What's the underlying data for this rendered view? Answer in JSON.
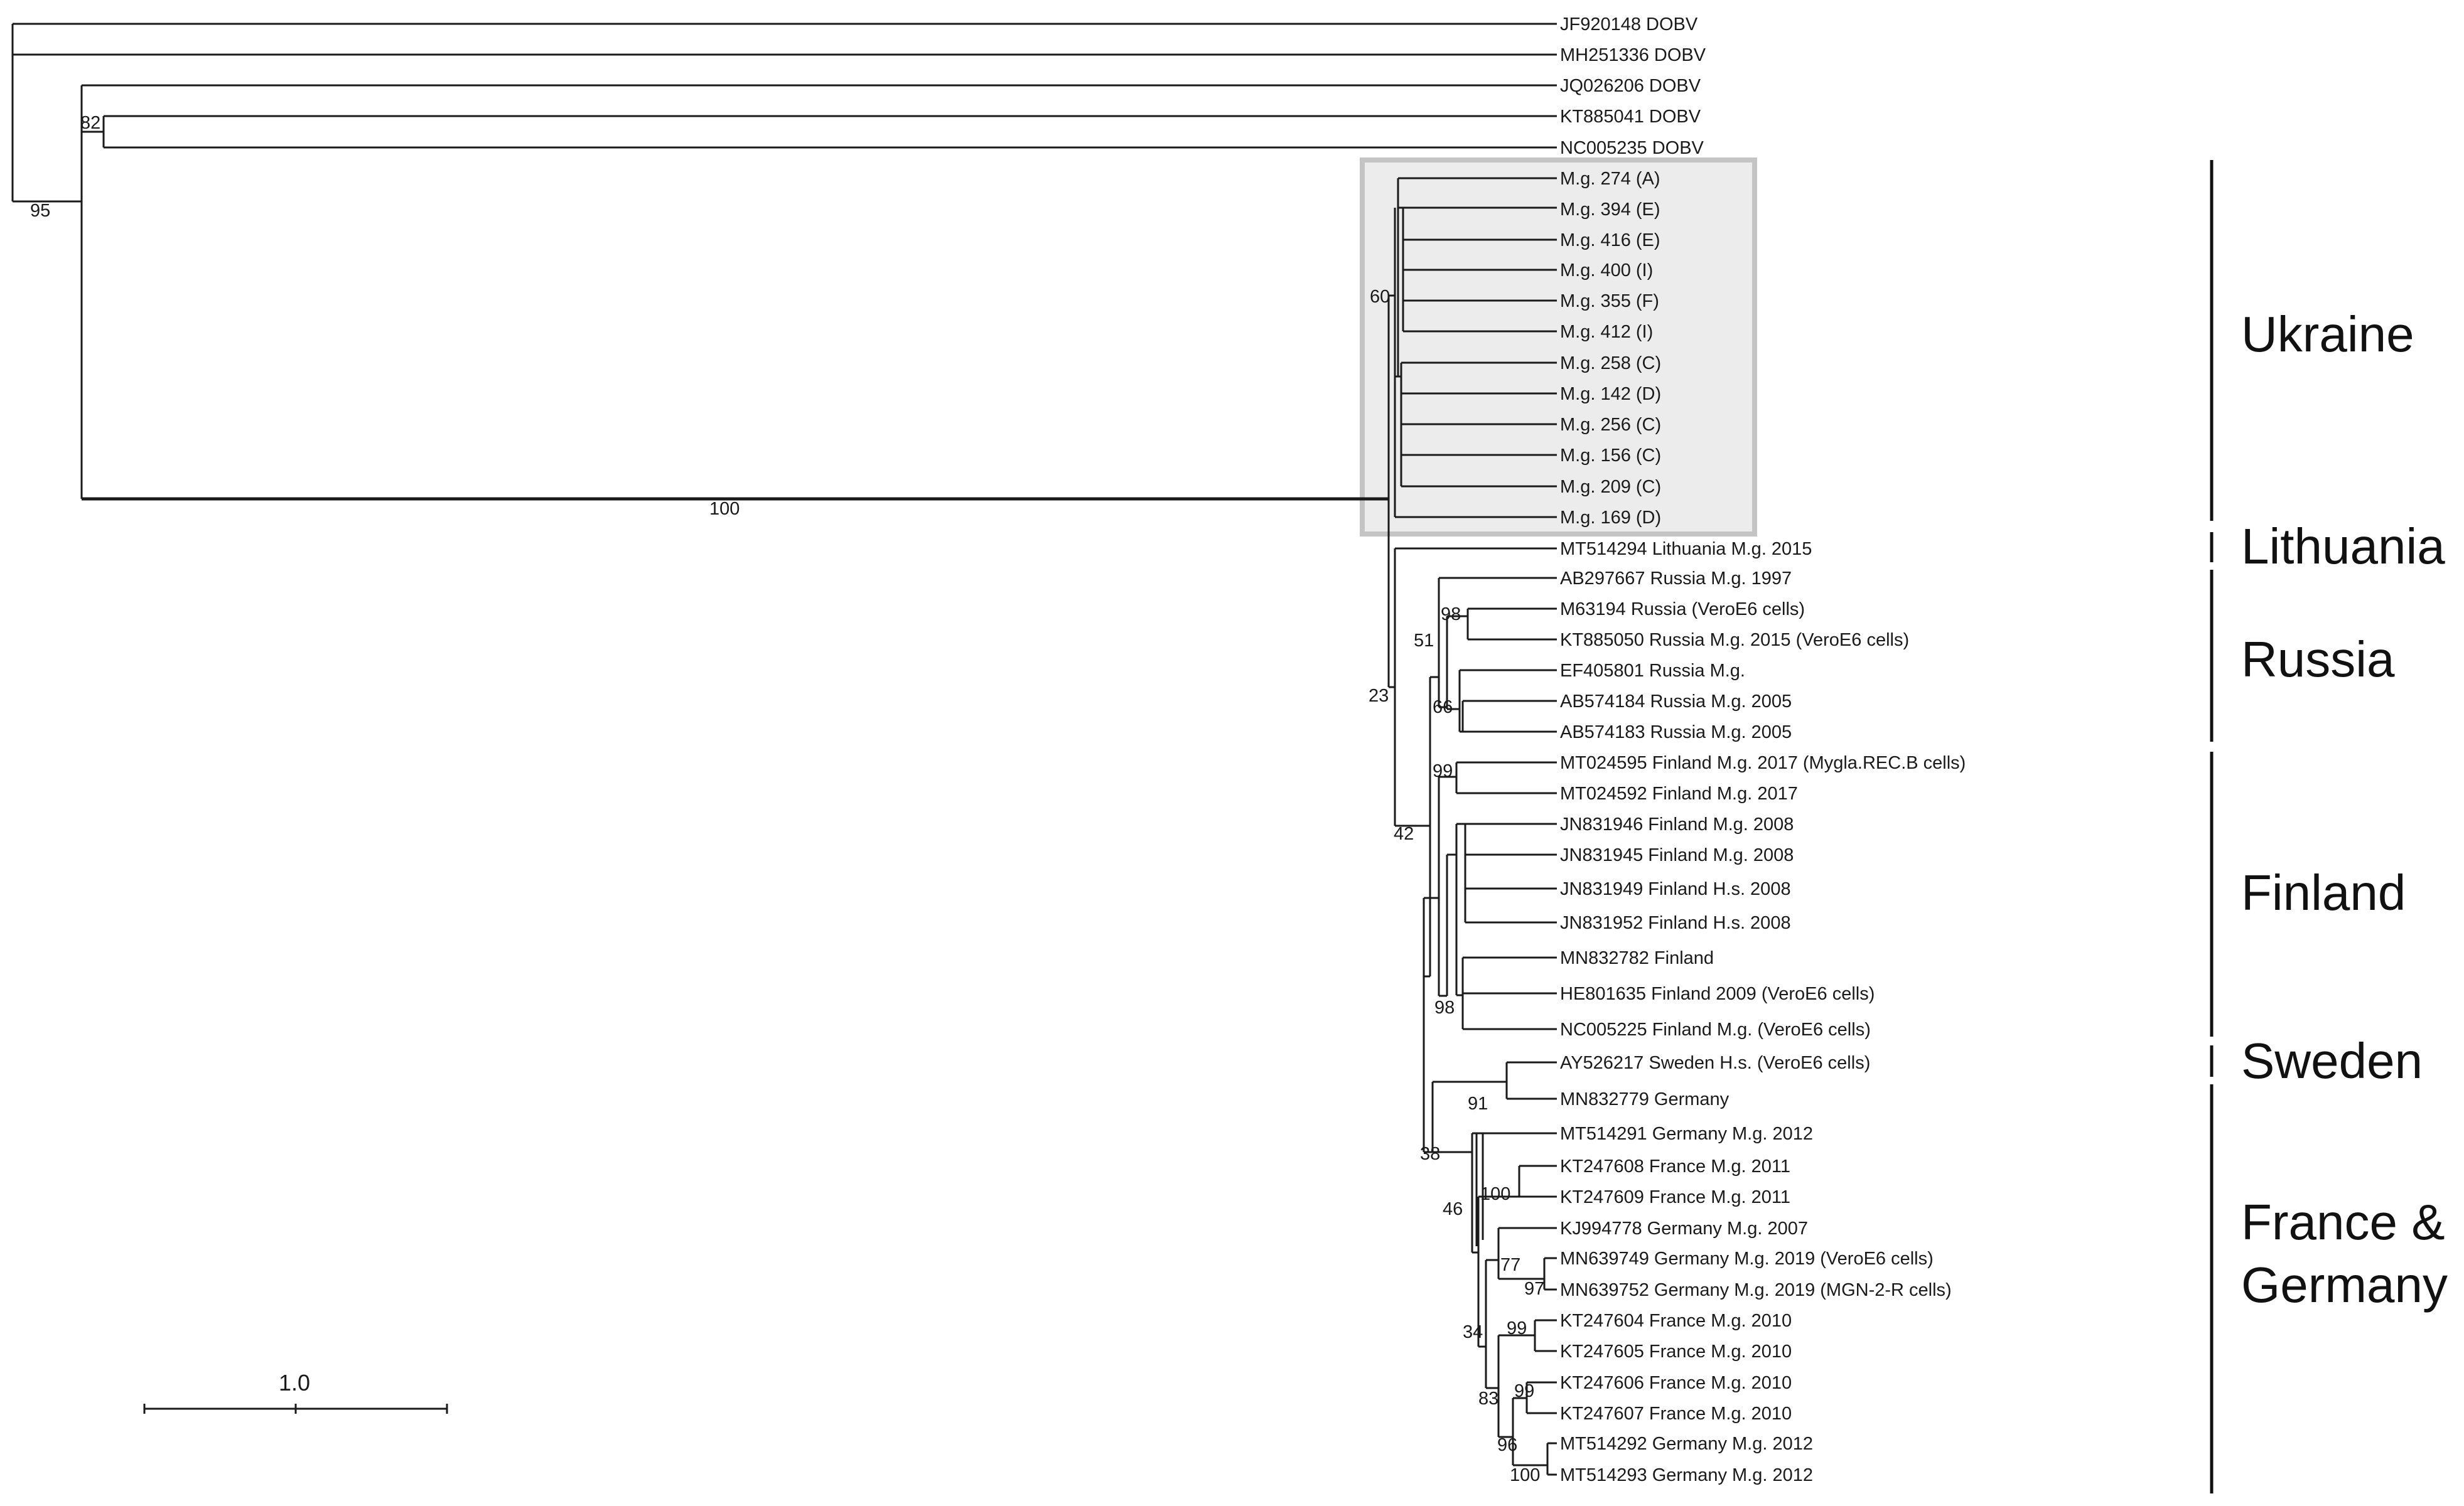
{
  "figure": {
    "title": "",
    "scale_bar_label": "1.0"
  },
  "tips": [
    "JF920148 DOBV",
    "MH251336 DOBV",
    "JQ026206 DOBV",
    "KT885041 DOBV",
    "NC005235 DOBV",
    "M.g. 274 (A)",
    "M.g. 394 (E)",
    "M.g. 416 (E)",
    "M.g. 400 (I)",
    "M.g. 355 (F)",
    "M.g. 412 (I)",
    "M.g. 258 (C)",
    "M.g. 142 (D)",
    "M.g. 256 (C)",
    "M.g. 156 (C)",
    "M.g. 209 (C)",
    "M.g. 169 (D)",
    "MT514294 Lithuania M.g. 2015",
    "AB297667 Russia M.g. 1997",
    "M63194 Russia (VeroE6 cells)",
    "KT885050 Russia M.g. 2015 (VeroE6 cells)",
    "EF405801 Russia M.g.",
    "AB574184 Russia M.g. 2005",
    "AB574183 Russia M.g. 2005",
    "MT024595 Finland M.g. 2017 (Mygla.REC.B cells)",
    "MT024592 Finland M.g. 2017",
    "JN831946 Finland M.g. 2008",
    "JN831945 Finland M.g. 2008",
    "JN831949 Finland H.s. 2008",
    "JN831952 Finland H.s. 2008",
    "MN832782 Finland",
    "HE801635 Finland 2009 (VeroE6 cells)",
    "NC005225 Finland M.g. (VeroE6 cells)",
    "AY526217 Sweden H.s. (VeroE6 cells)",
    "MN832779 Germany",
    "MT514291 Germany M.g. 2012",
    "KT247608 France M.g. 2011",
    "KT247609 France M.g. 2011",
    "KJ994778 Germany M.g. 2007",
    "MN639749 Germany M.g. 2019 (VeroE6 cells)",
    "MN639752 Germany M.g. 2019 (MGN-2-R cells)",
    "KT247604 France M.g. 2010",
    "KT247605 France M.g. 2010",
    "KT247606 France M.g. 2010",
    "KT247607 France M.g. 2010",
    "MT514292 Germany M.g. 2012",
    "MT514293 Germany M.g. 2012"
  ],
  "supports": [
    "95",
    "82",
    "100",
    "60",
    "23",
    "51",
    "98",
    "66",
    "42",
    "99",
    "98",
    "91",
    "38",
    "46",
    "100",
    "34",
    "77",
    "97",
    "99",
    "83",
    "99",
    "96",
    "100"
  ],
  "regions": [
    "Ukraine",
    "Lithuania",
    "Russia",
    "Finland",
    "Sweden",
    "France &",
    "Germany"
  ]
}
